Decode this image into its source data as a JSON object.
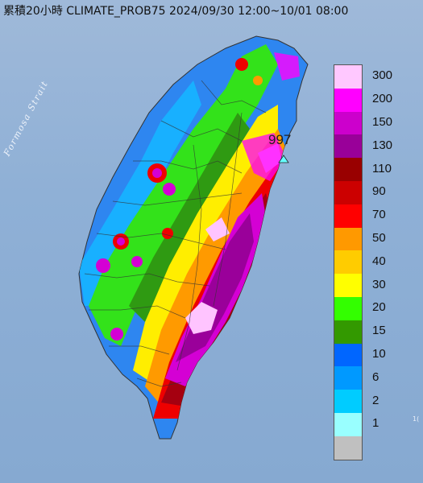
{
  "title": "累積20小時 CLIMATE_PROB75 2024/09/30 12:00~10/01 08:00",
  "strait_label": "Formosa Strait",
  "max_value_label": "997",
  "edge_label": "1(",
  "legend": [
    {
      "label": "300",
      "color": "#ffc8ff"
    },
    {
      "label": "200",
      "color": "#ff00ff"
    },
    {
      "label": "150",
      "color": "#cc00cc"
    },
    {
      "label": "130",
      "color": "#990099"
    },
    {
      "label": "110",
      "color": "#990000"
    },
    {
      "label": "90",
      "color": "#cc0000"
    },
    {
      "label": "70",
      "color": "#ff0000"
    },
    {
      "label": "50",
      "color": "#ff9900"
    },
    {
      "label": "40",
      "color": "#ffcc00"
    },
    {
      "label": "30",
      "color": "#ffff00"
    },
    {
      "label": "20",
      "color": "#33ff00"
    },
    {
      "label": "15",
      "color": "#339900"
    },
    {
      "label": "10",
      "color": "#0066ff"
    },
    {
      "label": "6",
      "color": "#0099ff"
    },
    {
      "label": "2",
      "color": "#00ccff"
    },
    {
      "label": "1",
      "color": "#99ffff"
    },
    {
      "label": "",
      "color": "#c0c0c0"
    }
  ]
}
